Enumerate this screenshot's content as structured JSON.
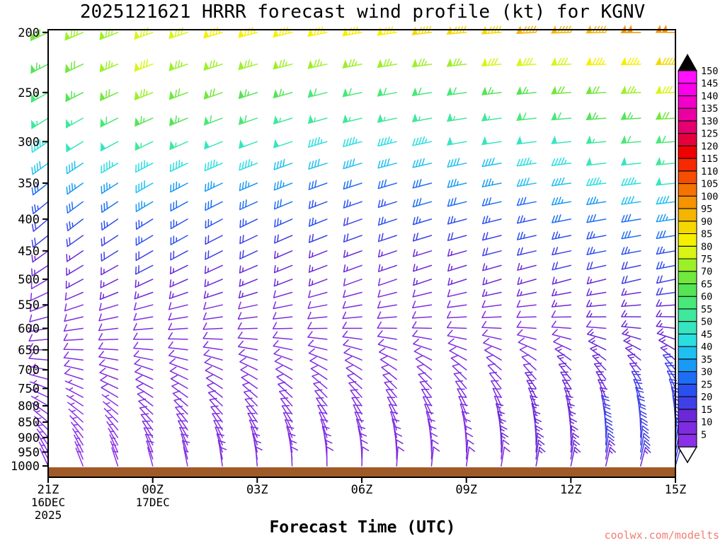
{
  "header": {
    "title": "2025121621 HRRR forecast wind profile (kt) for KGNV"
  },
  "footer": {
    "xlabel": "Forecast Time (UTC)",
    "watermark": "coolwx.com/modelts"
  },
  "chart_data": {
    "type": "wind-barb-profile",
    "title": "2025121621 HRRR forecast wind profile (kt) for KGNV",
    "xlabel": "Forecast Time (UTC)",
    "ylabel": "",
    "y_scale": "log-pressure",
    "y_ticks": [
      200,
      250,
      300,
      350,
      400,
      450,
      500,
      550,
      600,
      650,
      700,
      750,
      800,
      850,
      900,
      950,
      1000
    ],
    "x_ticks": [
      {
        "label": "21Z",
        "hour": 0,
        "sub": [
          "16DEC",
          "2025"
        ]
      },
      {
        "label": "00Z",
        "hour": 3,
        "sub": [
          "17DEC"
        ]
      },
      {
        "label": "03Z",
        "hour": 6,
        "sub": []
      },
      {
        "label": "06Z",
        "hour": 9,
        "sub": []
      },
      {
        "label": "09Z",
        "hour": 12,
        "sub": []
      },
      {
        "label": "12Z",
        "hour": 15,
        "sub": []
      },
      {
        "label": "15Z",
        "hour": 18,
        "sub": []
      }
    ],
    "time_range_hours": [
      0,
      18
    ],
    "pressure_range": [
      198,
      1043
    ],
    "surface_band": {
      "color": "#a05a28",
      "pressure_top": 1005
    },
    "barb_spacing": {
      "hours": 1,
      "hpa": 25
    },
    "coarse_grid": {
      "pressures": [
        200,
        250,
        300,
        350,
        400,
        450,
        500,
        550,
        600,
        650,
        700,
        750,
        800,
        850,
        900,
        950,
        1000
      ],
      "hours": [
        0,
        3,
        6,
        9,
        12,
        15,
        18
      ],
      "speed_kt": [
        [
          70,
          80,
          85,
          85,
          90,
          95,
          100
        ],
        [
          60,
          75,
          65,
          60,
          62,
          68,
          78
        ],
        [
          45,
          55,
          50,
          46,
          48,
          52,
          62
        ],
        [
          32,
          38,
          35,
          30,
          33,
          40,
          48
        ],
        [
          22,
          27,
          25,
          22,
          24,
          28,
          34
        ],
        [
          16,
          20,
          18,
          16,
          17,
          21,
          26
        ],
        [
          12,
          15,
          14,
          12,
          13,
          16,
          20
        ],
        [
          10,
          12,
          11,
          10,
          10,
          13,
          16
        ],
        [
          8,
          10,
          10,
          9,
          9,
          11,
          14
        ],
        [
          8,
          9,
          9,
          8,
          9,
          12,
          16
        ],
        [
          7,
          9,
          9,
          8,
          9,
          13,
          18
        ],
        [
          7,
          8,
          8,
          8,
          10,
          14,
          20
        ],
        [
          6,
          8,
          8,
          8,
          10,
          15,
          22
        ],
        [
          6,
          8,
          8,
          9,
          11,
          16,
          22
        ],
        [
          6,
          8,
          9,
          9,
          12,
          17,
          23
        ],
        [
          5,
          8,
          9,
          10,
          12,
          16,
          22
        ],
        [
          5,
          7,
          8,
          9,
          10,
          14,
          18
        ]
      ],
      "dir_deg": [
        [
          245,
          250,
          255,
          260,
          265,
          268,
          270
        ],
        [
          240,
          248,
          252,
          258,
          262,
          266,
          268
        ],
        [
          236,
          244,
          250,
          255,
          260,
          264,
          266
        ],
        [
          232,
          240,
          247,
          252,
          257,
          262,
          264
        ],
        [
          230,
          238,
          244,
          250,
          255,
          259,
          262
        ],
        [
          234,
          240,
          245,
          250,
          254,
          258,
          260
        ],
        [
          240,
          245,
          248,
          250,
          252,
          255,
          258
        ],
        [
          250,
          255,
          258,
          260,
          262,
          264,
          266
        ],
        [
          260,
          265,
          268,
          270,
          272,
          274,
          276
        ],
        [
          270,
          275,
          280,
          285,
          290,
          295,
          300
        ],
        [
          280,
          288,
          295,
          300,
          308,
          315,
          320
        ],
        [
          290,
          298,
          305,
          312,
          320,
          328,
          335
        ],
        [
          300,
          308,
          316,
          324,
          332,
          340,
          348
        ],
        [
          310,
          318,
          326,
          334,
          342,
          350,
          356
        ],
        [
          320,
          328,
          336,
          344,
          352,
          358,
          364
        ],
        [
          330,
          338,
          346,
          354,
          360,
          366,
          372
        ],
        [
          335,
          345,
          355,
          362,
          368,
          372,
          376
        ]
      ]
    },
    "colorbar": {
      "units": "kt",
      "values": [
        5,
        10,
        15,
        20,
        25,
        30,
        35,
        40,
        45,
        50,
        55,
        60,
        65,
        70,
        75,
        80,
        85,
        90,
        95,
        100,
        105,
        110,
        115,
        120,
        125,
        130,
        135,
        140,
        145,
        150
      ],
      "colors": [
        "#8b30e8",
        "#7f2ce0",
        "#6b28d8",
        "#4040e8",
        "#2b50f0",
        "#1e6ef5",
        "#189af5",
        "#1fc0f0",
        "#2adfe0",
        "#35e6c0",
        "#3fe89c",
        "#49e878",
        "#55e455",
        "#72e83d",
        "#9cf028",
        "#d8f515",
        "#f5f000",
        "#f5d800",
        "#f5b400",
        "#f59300",
        "#f57300",
        "#f54e00",
        "#f52a00",
        "#f00000",
        "#e3003c",
        "#e4006e",
        "#ea00a2",
        "#f000c8",
        "#fa00ea",
        "#ff10ff"
      ]
    }
  }
}
